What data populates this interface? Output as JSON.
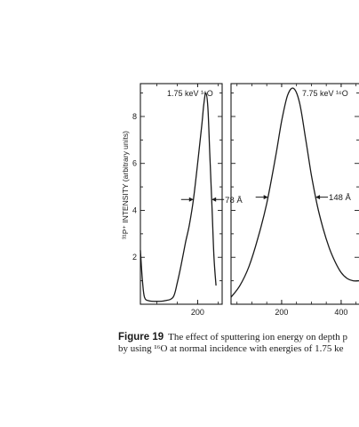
{
  "chart_data": [
    {
      "type": "line",
      "panel": "left",
      "annotation": "1.75 keV ¹⁶O",
      "ylabel": "³¹P⁺ INTENSITY (arbitrary units)",
      "xlim": [
        60,
        260
      ],
      "ylim": [
        0,
        9.4
      ],
      "xticks": [
        200
      ],
      "xtick_labels": [
        "200"
      ],
      "yticks": [
        2,
        4,
        6,
        8
      ],
      "ytick_labels": [
        "2",
        "4",
        "6",
        "8"
      ],
      "fwhm_label": "78 Å",
      "series": [
        {
          "x": [
            60,
            65,
            70,
            80,
            100,
            120,
            140,
            150,
            160,
            170,
            180,
            190,
            200,
            210,
            215,
            220,
            225,
            230,
            235,
            240,
            245
          ],
          "y": [
            2.3,
            1.0,
            0.3,
            0.15,
            0.12,
            0.15,
            0.3,
            0.9,
            1.7,
            2.6,
            3.4,
            4.5,
            6.0,
            7.6,
            8.5,
            9.0,
            8.4,
            6.3,
            4.2,
            2.0,
            0.8
          ]
        }
      ]
    },
    {
      "type": "line",
      "panel": "right",
      "annotation": "7.75 keV ¹⁶O",
      "xlim": [
        30,
        460
      ],
      "ylim": [
        0,
        9.4
      ],
      "xticks": [
        200,
        400
      ],
      "xtick_labels": [
        "200",
        "400"
      ],
      "fwhm_label": "148 Å",
      "series": [
        {
          "x": [
            30,
            60,
            90,
            120,
            150,
            180,
            200,
            220,
            240,
            260,
            280,
            300,
            320,
            340,
            360,
            380,
            400,
            420,
            440,
            460
          ],
          "y": [
            0.3,
            0.8,
            1.6,
            2.8,
            4.3,
            6.3,
            7.8,
            8.9,
            9.2,
            8.6,
            7.1,
            5.5,
            4.2,
            3.2,
            2.4,
            1.8,
            1.35,
            1.1,
            1.0,
            1.0
          ]
        }
      ]
    }
  ],
  "caption": {
    "figure_label": "Figure 19",
    "line1": "The effect of sputtering ion energy on depth p",
    "line2": "by using ¹⁶O at normal incidence with energies of 1.75 ke"
  }
}
